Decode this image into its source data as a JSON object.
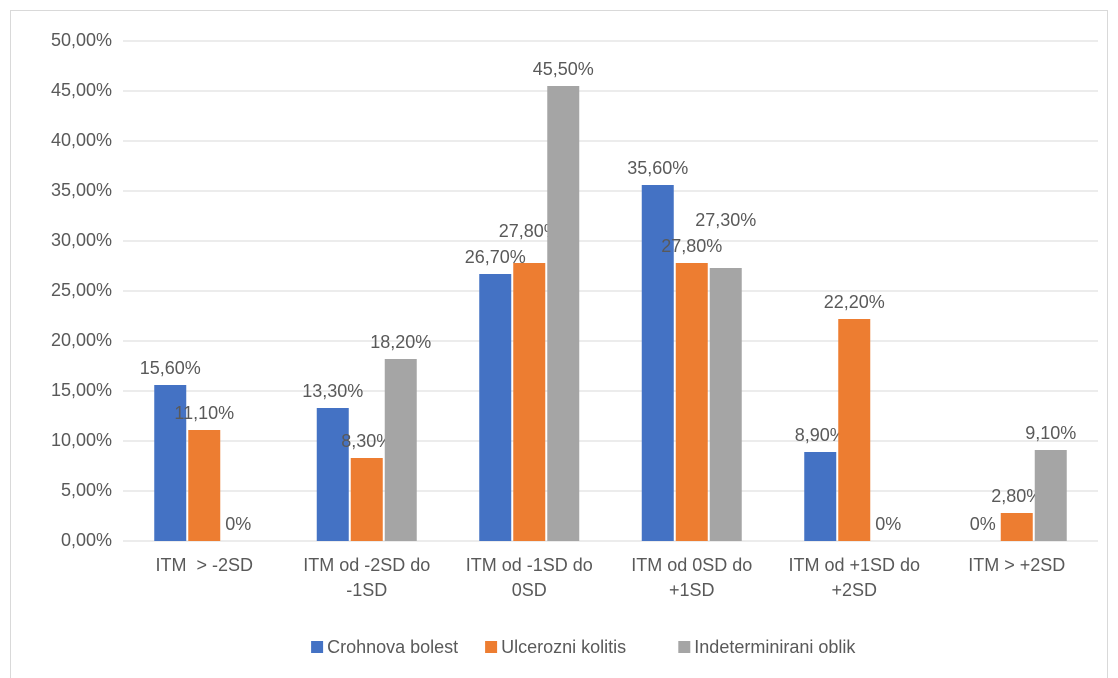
{
  "chart_data": {
    "type": "bar",
    "categories": [
      "ITM  > -2SD",
      "ITM od -2SD do -1SD",
      "ITM od -1SD do 0SD",
      "ITM od 0SD do +1SD",
      "ITM od +1SD do +2SD",
      "ITM > +2SD"
    ],
    "series": [
      {
        "name": "Crohnova bolest",
        "color": "#4472c4",
        "values": [
          15.6,
          13.3,
          26.7,
          35.6,
          8.9,
          0
        ],
        "value_labels": [
          "15,60%",
          "13,30%",
          "26,70%",
          "35,60%",
          "8,90%",
          "0%"
        ]
      },
      {
        "name": "Ulcerozni kolitis",
        "color": "#ed7d31",
        "values": [
          11.1,
          8.3,
          27.8,
          27.8,
          22.2,
          2.8
        ],
        "value_labels": [
          "11,10%",
          "8,30%",
          "27,80%",
          "27,80%",
          "22,20%",
          "2,80%"
        ]
      },
      {
        "name": "Indeterminirani oblik",
        "color": "#a5a5a5",
        "values": [
          0,
          18.2,
          45.5,
          27.3,
          0,
          9.1
        ],
        "value_labels": [
          "0%",
          "18,20%",
          "45,50%",
          "27,30%",
          "0%",
          "9,10%"
        ]
      }
    ],
    "ylim": [
      0,
      50
    ],
    "yticks": [
      {
        "value": 0,
        "label": "0,00%"
      },
      {
        "value": 5,
        "label": "5,00%"
      },
      {
        "value": 10,
        "label": "10,00%"
      },
      {
        "value": 15,
        "label": "15,00%"
      },
      {
        "value": 20,
        "label": "20,00%"
      },
      {
        "value": 25,
        "label": "25,00%"
      },
      {
        "value": 30,
        "label": "30,00%"
      },
      {
        "value": 35,
        "label": "35,00%"
      },
      {
        "value": 40,
        "label": "40,00%"
      },
      {
        "value": 45,
        "label": "45,00%"
      },
      {
        "value": 50,
        "label": "50,00%"
      }
    ],
    "grid": true,
    "legend": "bottom"
  }
}
